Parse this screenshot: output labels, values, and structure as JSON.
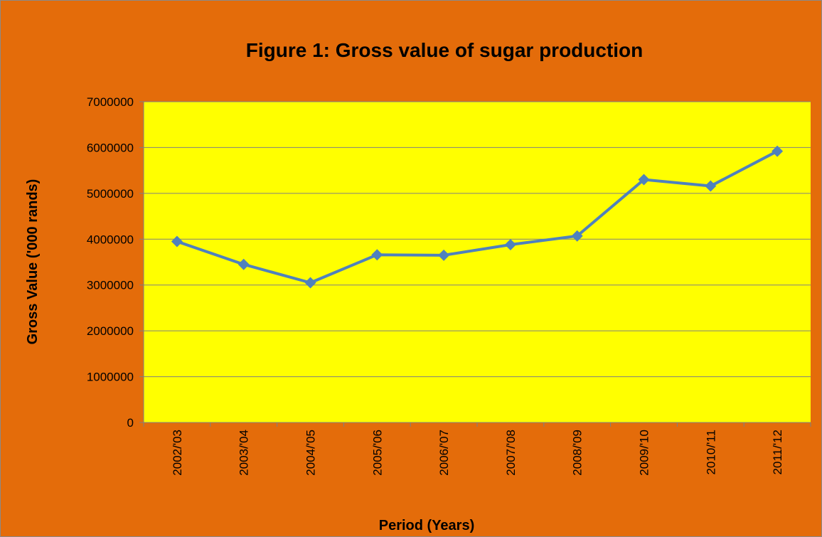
{
  "chart_data": {
    "type": "line",
    "title": "Figure 1: Gross value of sugar production",
    "x_label": "Period (Years)",
    "y_label": "Gross Value ('000 rands)",
    "categories": [
      "2002/'03",
      "2003/'04",
      "2004/'05",
      "2005/'06",
      "2006/'07",
      "2007/'08",
      "2008/'09",
      "2009/'10",
      "2010/'11",
      "2011/'12"
    ],
    "series": [
      {
        "name": "Gross value",
        "color": "#4f81bd",
        "values": [
          3950000,
          3450000,
          3050000,
          3660000,
          3650000,
          3880000,
          4070000,
          5300000,
          5160000,
          5920000
        ]
      }
    ],
    "ylim": [
      0,
      7000000
    ],
    "yticks": [
      0,
      1000000,
      2000000,
      3000000,
      4000000,
      5000000,
      6000000,
      7000000
    ],
    "grid": true,
    "plot_color": "#ffff00",
    "background_color": "#e46c0a"
  }
}
